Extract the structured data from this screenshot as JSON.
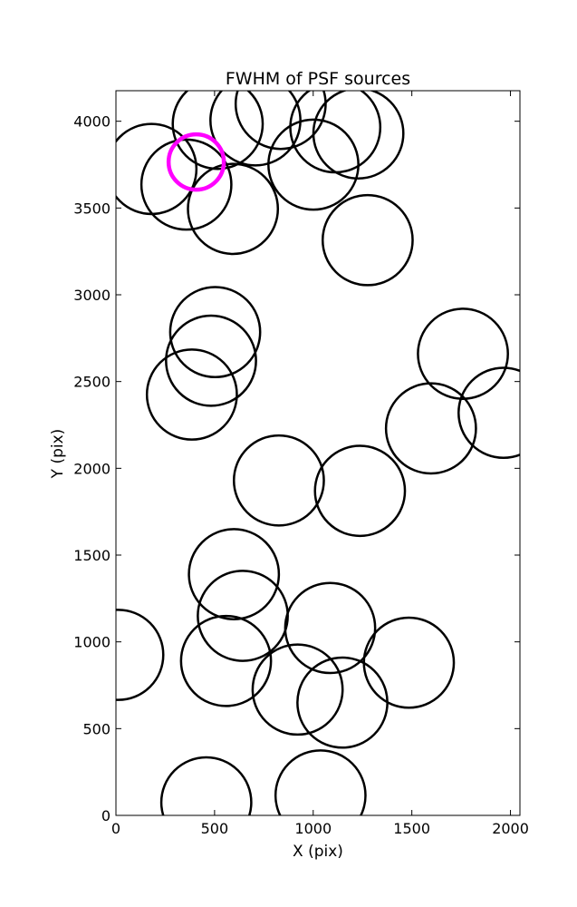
{
  "chart_data": {
    "type": "scatter",
    "title": "FWHM of PSF sources",
    "xlabel": "X (pix)",
    "ylabel": "Y (pix)",
    "xlim": [
      0,
      2048
    ],
    "ylim": [
      0,
      4176
    ],
    "xticks": [
      0,
      500,
      1000,
      1500,
      2000
    ],
    "yticks": [
      0,
      500,
      1000,
      1500,
      2000,
      2500,
      3000,
      3500,
      4000
    ],
    "grid": false,
    "marker": "open-circle",
    "circle_radius_data_x": 228,
    "sources": [
      {
        "x": 180,
        "y": 3725
      },
      {
        "x": 357,
        "y": 3635
      },
      {
        "x": 593,
        "y": 3495
      },
      {
        "x": 516,
        "y": 3985
      },
      {
        "x": 707,
        "y": 4005
      },
      {
        "x": 835,
        "y": 4100
      },
      {
        "x": 1112,
        "y": 3965
      },
      {
        "x": 1229,
        "y": 3930
      },
      {
        "x": 1001,
        "y": 3750
      },
      {
        "x": 1276,
        "y": 3315
      },
      {
        "x": 503,
        "y": 2785
      },
      {
        "x": 482,
        "y": 2620
      },
      {
        "x": 385,
        "y": 2425
      },
      {
        "x": 1759,
        "y": 2660
      },
      {
        "x": 1597,
        "y": 2230
      },
      {
        "x": 1965,
        "y": 2320
      },
      {
        "x": 826,
        "y": 1930
      },
      {
        "x": 1237,
        "y": 1870
      },
      {
        "x": 598,
        "y": 1390
      },
      {
        "x": 643,
        "y": 1150
      },
      {
        "x": 1086,
        "y": 1080
      },
      {
        "x": 558,
        "y": 890
      },
      {
        "x": 921,
        "y": 725
      },
      {
        "x": 1148,
        "y": 650
      },
      {
        "x": 1485,
        "y": 880
      },
      {
        "x": 12,
        "y": 925
      },
      {
        "x": 458,
        "y": 75
      },
      {
        "x": 1037,
        "y": 115
      }
    ],
    "highlight": {
      "x": 407,
      "y": 3765,
      "color": "#ff00ff",
      "radius_data_x": 140
    },
    "colors": {
      "circle": "#000000",
      "highlight": "#ff00ff",
      "background": "#ffffff"
    }
  }
}
